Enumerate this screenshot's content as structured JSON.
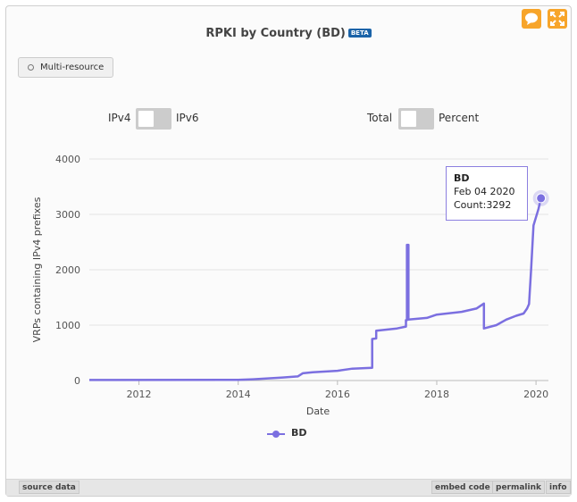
{
  "widget": {
    "title": "RPKI by Country (BD)",
    "beta_label": "BETA",
    "multi_resource_label": "Multi-resource",
    "toggles": {
      "ipv4_label": "IPv4",
      "ipv6_label": "IPv6",
      "total_label": "Total",
      "percent_label": "Percent"
    },
    "footer": {
      "source_data": "source data",
      "embed_code": "embed code",
      "permalink": "permalink",
      "info": "info"
    },
    "icons": [
      "comment-icon",
      "expand-icon"
    ],
    "accent_color": "#f7a52a"
  },
  "chart_data": {
    "type": "line",
    "ylabel": "VRPs containing IPv4 prefixes",
    "xlabel": "Date",
    "xlim": [
      2011.0,
      2020.25
    ],
    "ylim": [
      0,
      4000
    ],
    "x_ticks": [
      2012,
      2014,
      2016,
      2018,
      2020
    ],
    "y_ticks": [
      0,
      1000,
      2000,
      3000,
      4000
    ],
    "grid": true,
    "legend_position": "bottom",
    "series": [
      {
        "name": "BD",
        "color": "#7b6fe0",
        "points": [
          [
            2011.0,
            10
          ],
          [
            2014.0,
            12
          ],
          [
            2014.3,
            22
          ],
          [
            2014.9,
            55
          ],
          [
            2015.2,
            75
          ],
          [
            2015.3,
            130
          ],
          [
            2015.5,
            150
          ],
          [
            2016.0,
            175
          ],
          [
            2016.3,
            215
          ],
          [
            2016.7,
            230
          ],
          [
            2016.7,
            750
          ],
          [
            2016.78,
            760
          ],
          [
            2016.78,
            900
          ],
          [
            2017.2,
            940
          ],
          [
            2017.38,
            975
          ],
          [
            2017.38,
            1090
          ],
          [
            2017.4,
            1090
          ],
          [
            2017.4,
            2450
          ],
          [
            2017.43,
            2450
          ],
          [
            2017.43,
            1100
          ],
          [
            2017.8,
            1130
          ],
          [
            2018.0,
            1190
          ],
          [
            2018.5,
            1240
          ],
          [
            2018.8,
            1300
          ],
          [
            2018.95,
            1390
          ],
          [
            2018.95,
            940
          ],
          [
            2019.2,
            1000
          ],
          [
            2019.4,
            1100
          ],
          [
            2019.6,
            1170
          ],
          [
            2019.75,
            1210
          ],
          [
            2019.82,
            1300
          ],
          [
            2019.86,
            1380
          ],
          [
            2019.9,
            2000
          ],
          [
            2019.95,
            2800
          ],
          [
            2020.05,
            3100
          ],
          [
            2020.1,
            3292
          ]
        ]
      }
    ],
    "tooltip": {
      "series": "BD",
      "date": "Feb 04 2020",
      "count": "Count:3292",
      "x": 2020.1,
      "y": 3292
    }
  }
}
